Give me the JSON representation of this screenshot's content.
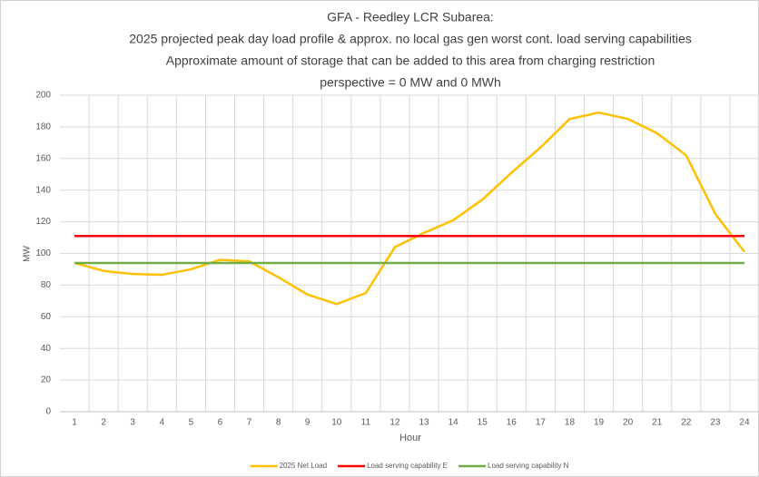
{
  "chart_data": {
    "type": "line",
    "title": [
      "GFA - Reedley LCR Subarea:",
      "2025 projected peak day load profile & approx. no local gas gen worst cont. load serving capabilities",
      "Approximate amount of storage that can be added to this area from charging restriction",
      "perspective = 0 MW and 0 MWh"
    ],
    "x_label": "Hour",
    "y_label": "MW",
    "categories": [
      "1",
      "2",
      "3",
      "4",
      "5",
      "6",
      "7",
      "8",
      "9",
      "10",
      "11",
      "12",
      "13",
      "14",
      "15",
      "16",
      "17",
      "18",
      "19",
      "20",
      "21",
      "22",
      "23",
      "24"
    ],
    "series": [
      {
        "name": "2025 Net Load",
        "color": "#FFC000",
        "values": [
          94,
          89,
          87,
          86.5,
          90,
          96,
          95,
          85,
          74,
          68,
          75,
          104,
          113,
          121,
          134,
          151,
          167,
          185,
          189,
          185,
          176,
          162,
          125,
          101
        ]
      },
      {
        "name": "Load serving capability E",
        "color": "#FF0000",
        "values": [
          111,
          111,
          111,
          111,
          111,
          111,
          111,
          111,
          111,
          111,
          111,
          111,
          111,
          111,
          111,
          111,
          111,
          111,
          111,
          111,
          111,
          111,
          111,
          111
        ]
      },
      {
        "name": "Load serving capability N",
        "color": "#70AD47",
        "values": [
          94,
          94,
          94,
          94,
          94,
          94,
          94,
          94,
          94,
          94,
          94,
          94,
          94,
          94,
          94,
          94,
          94,
          94,
          94,
          94,
          94,
          94,
          94,
          94
        ]
      }
    ],
    "ylim": [
      0,
      200
    ],
    "yticks": [
      0,
      20,
      40,
      60,
      80,
      100,
      120,
      140,
      160,
      180,
      200
    ],
    "grid": true,
    "legend": "bottom"
  }
}
